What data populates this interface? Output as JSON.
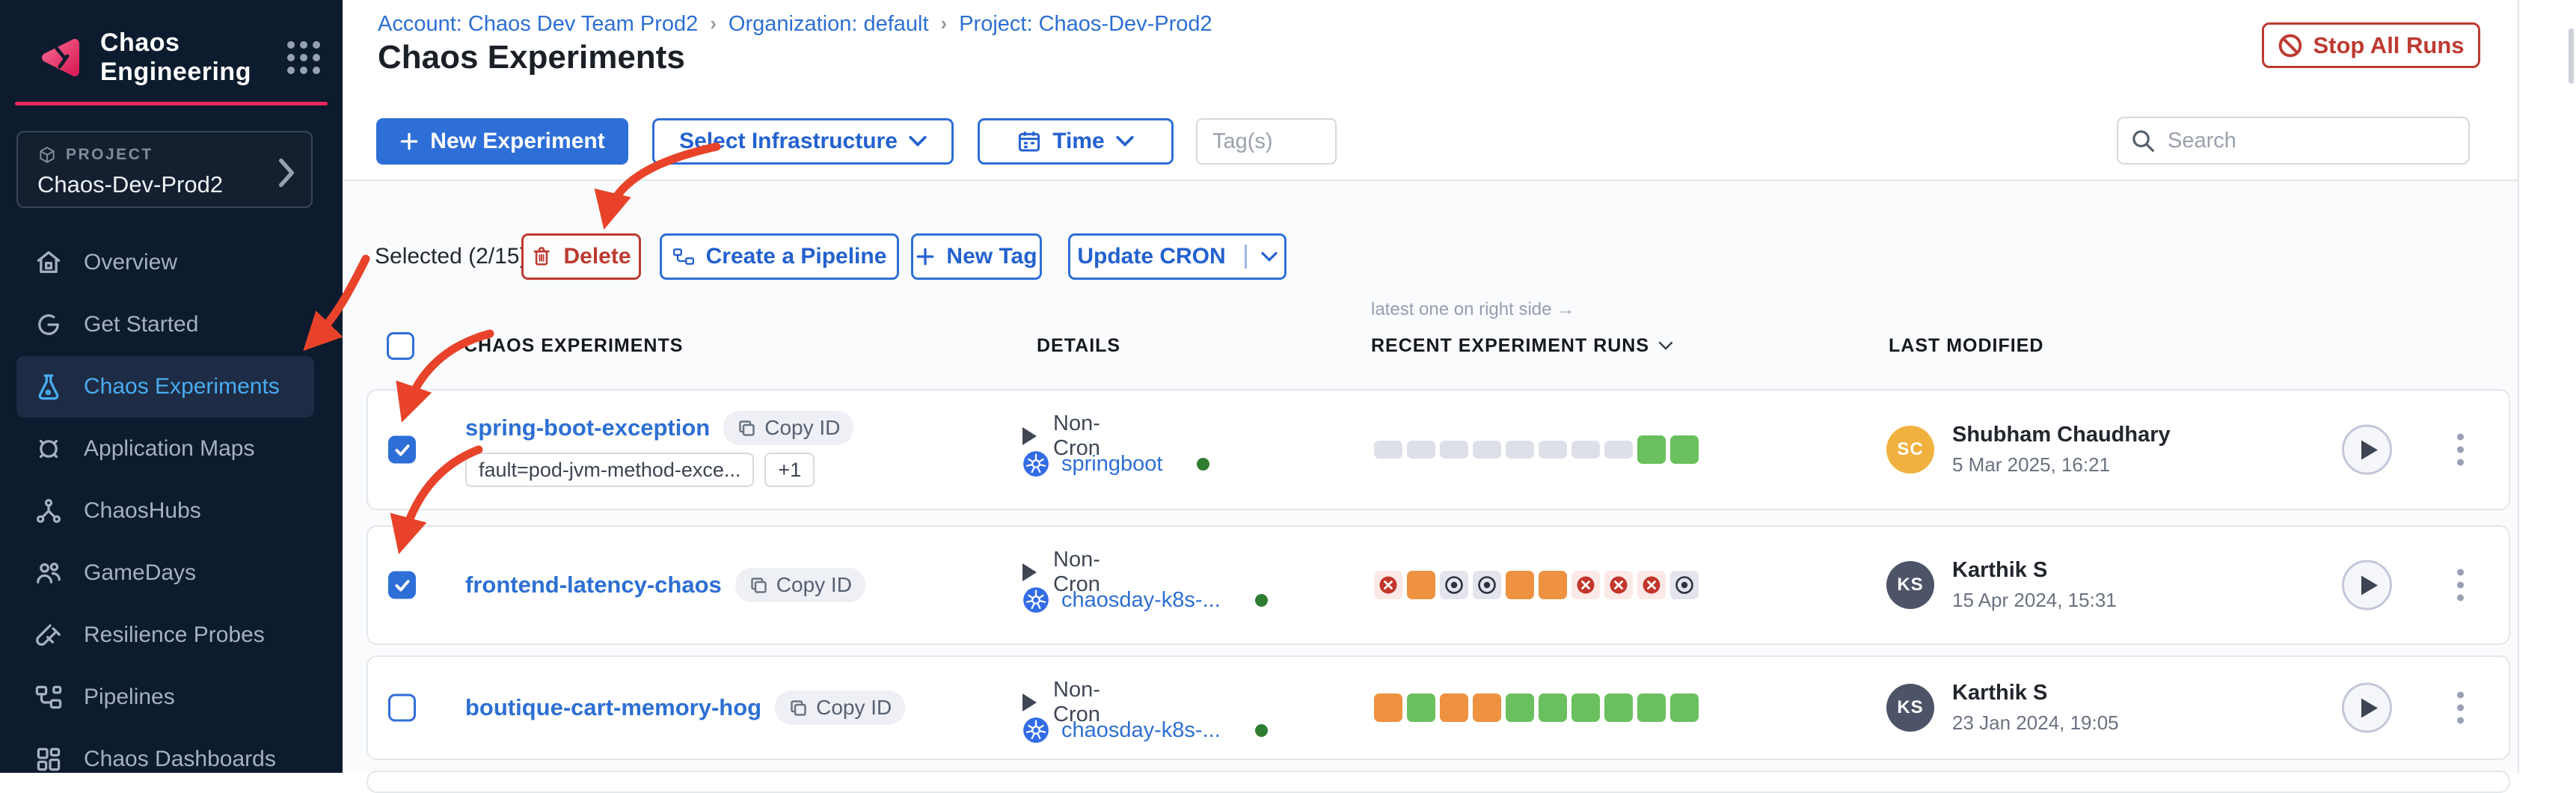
{
  "colors": {
    "sidebar_bg": "#0c1b2d",
    "accent_pink": "#e7265d",
    "primary_blue": "#2e6ed7",
    "link_blue": "#2d6fd3",
    "active_nav_blue": "#49acf1",
    "danger_red": "#bd3a30",
    "run_green": "#6abf5e",
    "run_orange": "#ee9140",
    "run_fail_icon": "#c3362b",
    "annotation_red": "#e8432a",
    "infra_dot_green": "#2f7d31"
  },
  "app": {
    "title": "Chaos Engineering"
  },
  "sidebar": {
    "project_label": "PROJECT",
    "project_name": "Chaos-Dev-Prod2",
    "items": [
      {
        "label": "Overview",
        "icon": "home",
        "active": false
      },
      {
        "label": "Get Started",
        "icon": "get-started",
        "active": false
      },
      {
        "label": "Chaos Experiments",
        "icon": "flask",
        "active": true
      },
      {
        "label": "Application Maps",
        "icon": "target",
        "active": false
      },
      {
        "label": "ChaosHubs",
        "icon": "hub",
        "active": false
      },
      {
        "label": "GameDays",
        "icon": "people",
        "active": false
      },
      {
        "label": "Resilience Probes",
        "icon": "probe",
        "active": false
      },
      {
        "label": "Pipelines",
        "icon": "pipeline",
        "active": false
      },
      {
        "label": "Chaos Dashboards",
        "icon": "dashboard",
        "active": false
      }
    ]
  },
  "header": {
    "breadcrumb": [
      "Account: Chaos Dev Team Prod2",
      "Organization: default",
      "Project: Chaos-Dev-Prod2"
    ],
    "separator": "›",
    "title": "Chaos Experiments",
    "stop_label": "Stop All Runs"
  },
  "toolbar": {
    "new_experiment_label": "New Experiment",
    "select_infrastructure_label": "Select Infrastructure",
    "time_label": "Time",
    "tags_placeholder": "Tag(s)",
    "search_placeholder": "Search"
  },
  "selection": {
    "selected_text": "Selected (2/15)",
    "delete_label": "Delete",
    "create_pipeline_label": "Create a Pipeline",
    "new_tag_label": "New Tag",
    "update_cron_label": "Update CRON"
  },
  "table": {
    "note": "latest one on right side →",
    "col_experiments": "CHAOS EXPERIMENTS",
    "col_details": "DETAILS",
    "col_runs": "RECENT EXPERIMENT RUNS",
    "col_modified": "LAST MODIFIED"
  },
  "rows": [
    {
      "checked": true,
      "name": "spring-boot-exception",
      "copy_label": "Copy ID",
      "tags": [
        "fault=pod-jvm-method-exce...",
        "+1"
      ],
      "cron_type": "Non-Cron",
      "infra": "springboot",
      "runs": [
        "empty",
        "empty",
        "empty",
        "empty",
        "empty",
        "empty",
        "empty",
        "empty",
        "passed",
        "passed"
      ],
      "modified_by": "Shubham Chaudhary",
      "modified_at": "5 Mar 2025, 16:21",
      "avatar_initials": "SC",
      "avatar_color": "#f0b13e"
    },
    {
      "checked": true,
      "name": "frontend-latency-chaos",
      "copy_label": "Copy ID",
      "tags": [],
      "cron_type": "Non-Cron",
      "infra": "chaosday-k8s-...",
      "runs": [
        "failed",
        "running",
        "stopped",
        "stopped",
        "running",
        "running",
        "failed",
        "failed",
        "failed",
        "stopped"
      ],
      "modified_by": "Karthik S",
      "modified_at": "15 Apr 2024, 15:31",
      "avatar_initials": "KS",
      "avatar_color": "#4e5468"
    },
    {
      "checked": false,
      "name": "boutique-cart-memory-hog",
      "copy_label": "Copy ID",
      "tags": [],
      "cron_type": "Non-Cron",
      "infra": "chaosday-k8s-...",
      "runs": [
        "running",
        "passed",
        "running",
        "running",
        "passed",
        "passed",
        "passed",
        "passed",
        "passed",
        "passed"
      ],
      "modified_by": "Karthik S",
      "modified_at": "23 Jan 2024, 19:05",
      "avatar_initials": "KS",
      "avatar_color": "#4e5468"
    }
  ]
}
